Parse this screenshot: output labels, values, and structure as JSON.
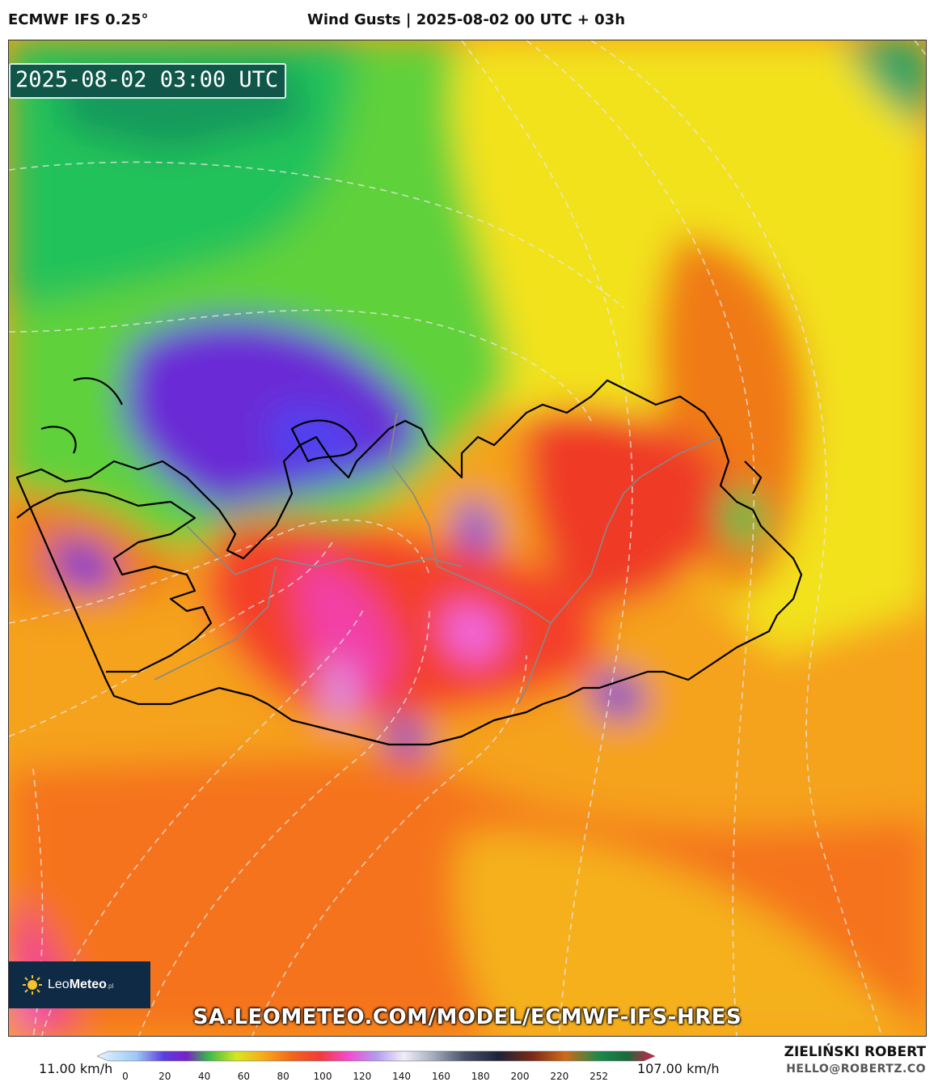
{
  "header": {
    "model": "ECMWF IFS 0.25°",
    "title": "Wind Gusts | 2025-08-02 00 UTC + 03h"
  },
  "map": {
    "valid_time": "2025-08-02 03:00 UTC",
    "url": "SA.LEOMETEO.COM/MODEL/ECMWF-IFS-HRES",
    "logo": {
      "brand_light": "Leo",
      "brand_bold": "Meteo",
      "suffix": ".pl"
    }
  },
  "colorbar": {
    "min_label": "11.00 km/h",
    "max_label": "107.00 km/h",
    "ticks": [
      "0",
      "20",
      "40",
      "60",
      "80",
      "100",
      "120",
      "140",
      "160",
      "180",
      "200",
      "220",
      "252"
    ]
  },
  "credits": {
    "author": "ZIELIŃSKI ROBERT",
    "email": "HELLO@ROBERTZ.CO"
  }
}
